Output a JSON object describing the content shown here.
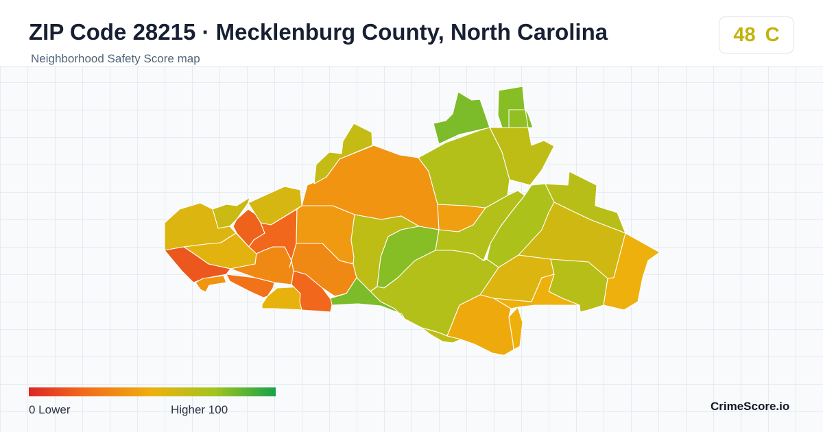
{
  "header": {
    "title": "ZIP Code 28215 · Mecklenburg County, North Carolina",
    "subtitle": "Neighborhood Safety Score map"
  },
  "score": {
    "value": "48",
    "grade": "C",
    "color": "#c2b30c"
  },
  "map": {
    "regions": [
      {
        "id": "n-annex",
        "score": 80
      },
      {
        "id": "n-annex-2",
        "score": 78
      },
      {
        "id": "n-top",
        "score": 82
      },
      {
        "id": "ne-strip",
        "score": 66
      },
      {
        "id": "ne-edge",
        "score": 68
      },
      {
        "id": "ne-large",
        "score": 60
      },
      {
        "id": "c-north",
        "score": 40
      },
      {
        "id": "nw-tip",
        "score": 64
      },
      {
        "id": "w-upper",
        "score": 58
      },
      {
        "id": "w-hook",
        "score": 62
      },
      {
        "id": "w-left",
        "score": 56
      },
      {
        "id": "w-red-1",
        "score": 22
      },
      {
        "id": "w-red-2",
        "score": 24
      },
      {
        "id": "w-red-3",
        "score": 24
      },
      {
        "id": "w-mid",
        "score": 54
      },
      {
        "id": "sw-red",
        "score": 18
      },
      {
        "id": "sw-tab",
        "score": 40
      },
      {
        "id": "sw-blob",
        "score": 36
      },
      {
        "id": "sw-orange",
        "score": 28
      },
      {
        "id": "sw-yellow",
        "score": 52
      },
      {
        "id": "s-red",
        "score": 24
      },
      {
        "id": "c-west",
        "score": 42
      },
      {
        "id": "c-west-2",
        "score": 36
      },
      {
        "id": "c-green-1",
        "score": 66
      },
      {
        "id": "c-green-dk",
        "score": 80
      },
      {
        "id": "c-amber",
        "score": 44
      },
      {
        "id": "c-green-2",
        "score": 70
      },
      {
        "id": "e-green-1",
        "score": 72
      },
      {
        "id": "e-green-2",
        "score": 70
      },
      {
        "id": "e-olive",
        "score": 56
      },
      {
        "id": "e-edge",
        "score": 50
      },
      {
        "id": "e-green-3",
        "score": 68
      },
      {
        "id": "c-south",
        "score": 70
      },
      {
        "id": "s-strip",
        "score": 82
      },
      {
        "id": "s-yellow-1",
        "score": 48
      },
      {
        "id": "s-yellow-2",
        "score": 50
      },
      {
        "id": "s-yellow-3",
        "score": 50
      },
      {
        "id": "s-tail",
        "score": 66
      }
    ]
  },
  "legend": {
    "min_label": "0  Lower",
    "max_label": "Higher  100",
    "colors": [
      "#dc2626",
      "#f26a1b",
      "#eeb00c",
      "#a3c41c",
      "#16a34a"
    ]
  },
  "brand": "CrimeScore.io"
}
